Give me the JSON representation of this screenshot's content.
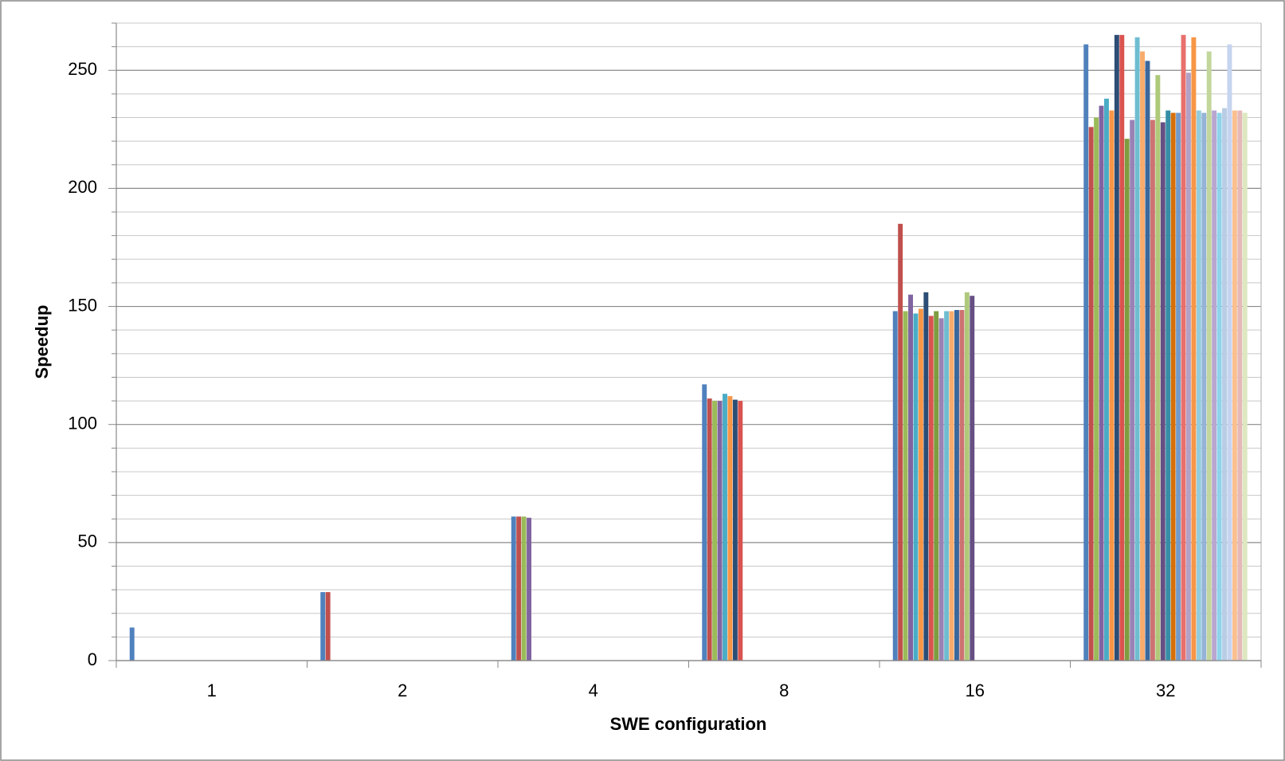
{
  "chart_data": {
    "type": "bar",
    "x_label": "SWE configuration",
    "y_label": "Speedup",
    "categories": [
      "1",
      "2",
      "4",
      "8",
      "16",
      "32"
    ],
    "ylim": [
      0,
      270
    ],
    "yticks": [
      0,
      50,
      100,
      150,
      200,
      250
    ],
    "minor_yticks": [
      10,
      20,
      30,
      40,
      60,
      70,
      80,
      90,
      110,
      120,
      130,
      140,
      160,
      170,
      180,
      190,
      210,
      220,
      230,
      240,
      260,
      270
    ],
    "grid": true,
    "series": [
      {
        "color": "#4f81bd",
        "values": [
          14,
          29,
          61,
          117,
          148,
          261
        ]
      },
      {
        "color": "#c0504d",
        "values": [
          null,
          29,
          61,
          111,
          185,
          226
        ]
      },
      {
        "color": "#9bbb59",
        "values": [
          null,
          null,
          61,
          110,
          148,
          230
        ]
      },
      {
        "color": "#8064a2",
        "values": [
          null,
          null,
          60.5,
          110,
          155,
          235
        ]
      },
      {
        "color": "#4bacc6",
        "values": [
          null,
          null,
          null,
          113,
          147,
          238
        ]
      },
      {
        "color": "#f79646",
        "values": [
          null,
          null,
          null,
          112,
          149,
          233
        ]
      },
      {
        "color": "#2c4d75",
        "values": [
          null,
          null,
          null,
          110.5,
          156,
          265
        ]
      },
      {
        "color": "#d9534f",
        "values": [
          null,
          null,
          null,
          110,
          146,
          265
        ]
      },
      {
        "color": "#7e9c40",
        "values": [
          null,
          null,
          null,
          null,
          148,
          221
        ]
      },
      {
        "color": "#9983b5",
        "values": [
          null,
          null,
          null,
          null,
          145,
          229
        ]
      },
      {
        "color": "#6fbdd1",
        "values": [
          null,
          null,
          null,
          null,
          148,
          264
        ]
      },
      {
        "color": "#f9ab6b",
        "values": [
          null,
          null,
          null,
          null,
          148,
          258
        ]
      },
      {
        "color": "#3a679c",
        "values": [
          null,
          null,
          null,
          null,
          148.5,
          254
        ]
      },
      {
        "color": "#cd7371",
        "values": [
          null,
          null,
          null,
          null,
          148.5,
          229
        ]
      },
      {
        "color": "#afc97a",
        "values": [
          null,
          null,
          null,
          null,
          156,
          248
        ]
      },
      {
        "color": "#664f83",
        "values": [
          null,
          null,
          null,
          null,
          154.5,
          228
        ]
      },
      {
        "color": "#358ea6",
        "values": [
          null,
          null,
          null,
          null,
          null,
          233
        ]
      },
      {
        "color": "#d6700a",
        "values": [
          null,
          null,
          null,
          null,
          null,
          232
        ]
      },
      {
        "color": "#729aca",
        "values": [
          null,
          null,
          null,
          null,
          null,
          232
        ]
      },
      {
        "color": "#e8706c",
        "values": [
          null,
          null,
          null,
          null,
          null,
          265
        ]
      },
      {
        "color": "#b2a1c7",
        "values": [
          null,
          null,
          null,
          null,
          null,
          249
        ]
      },
      {
        "color": "#f79646",
        "values": [
          null,
          null,
          null,
          null,
          null,
          264
        ]
      },
      {
        "color": "#93cddd",
        "values": [
          null,
          null,
          null,
          null,
          null,
          233
        ]
      },
      {
        "color": "#95b3d7",
        "values": [
          null,
          null,
          null,
          null,
          null,
          232
        ]
      },
      {
        "color": "#c3d69b",
        "values": [
          null,
          null,
          null,
          null,
          null,
          258
        ]
      },
      {
        "color": "#b9a6d0",
        "values": [
          null,
          null,
          null,
          null,
          null,
          233
        ]
      },
      {
        "color": "#8fd3ea",
        "values": [
          null,
          null,
          null,
          null,
          null,
          232
        ]
      },
      {
        "color": "#b9cde5",
        "values": [
          null,
          null,
          null,
          null,
          null,
          234
        ]
      },
      {
        "color": "#c6d4ef",
        "values": [
          null,
          null,
          null,
          null,
          null,
          261
        ]
      },
      {
        "color": "#fac090",
        "values": [
          null,
          null,
          null,
          null,
          null,
          233
        ]
      },
      {
        "color": "#e6b9b8",
        "values": [
          null,
          null,
          null,
          null,
          null,
          233
        ]
      },
      {
        "color": "#dde8c0",
        "values": [
          null,
          null,
          null,
          null,
          null,
          232
        ]
      }
    ]
  }
}
